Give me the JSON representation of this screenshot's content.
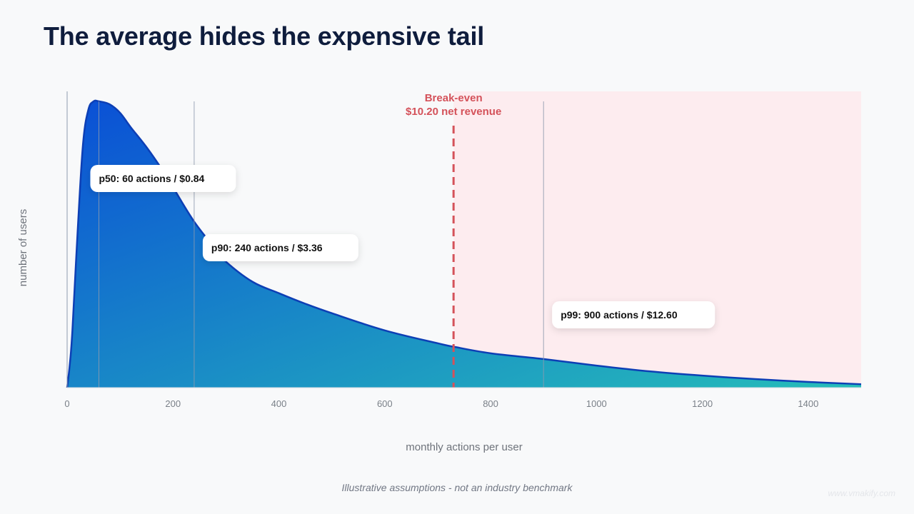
{
  "slide": {
    "title": "The average hides the expensive tail",
    "footnote": "Illustrative assumptions - not an industry benchmark",
    "watermark": "www.vmakify.com"
  },
  "chart_data": {
    "type": "area",
    "xlabel": "monthly actions per user",
    "ylabel": "number of users",
    "xlim": [
      0,
      1500
    ],
    "x_ticks": [
      0,
      200,
      400,
      600,
      800,
      1000,
      1200,
      1400
    ],
    "curve": {
      "x": [
        0,
        5,
        10,
        20,
        30,
        40,
        50,
        60,
        80,
        100,
        120,
        150,
        180,
        200,
        240,
        280,
        300,
        350,
        400,
        450,
        500,
        600,
        700,
        730,
        800,
        900,
        1000,
        1100,
        1200,
        1300,
        1400,
        1500
      ],
      "y": [
        0,
        0.08,
        0.2,
        0.55,
        0.85,
        0.97,
        1.0,
        1.0,
        0.99,
        0.96,
        0.91,
        0.84,
        0.76,
        0.7,
        0.58,
        0.485,
        0.44,
        0.37,
        0.33,
        0.293,
        0.26,
        0.2,
        0.155,
        0.143,
        0.12,
        0.1,
        0.077,
        0.057,
        0.042,
        0.03,
        0.02,
        0.012
      ]
    },
    "percentiles": [
      {
        "x": 60,
        "label": "p50: 60 actions / $0.84"
      },
      {
        "x": 240,
        "label": "p90: 240 actions / $3.36"
      },
      {
        "x": 900,
        "label": "p99: 900 actions / $12.60"
      }
    ],
    "break_even": {
      "x": 730,
      "label_line1": "Break-even",
      "label_line2": "$10.20 net revenue"
    },
    "colors": {
      "fill_top": "#0a4fd6",
      "fill_bottom": "#26bdb9",
      "stroke": "#0d3fb5",
      "break_even": "#d4525a",
      "loss_zone": "#fdecef",
      "percentile_line": "#8e9aae"
    }
  }
}
